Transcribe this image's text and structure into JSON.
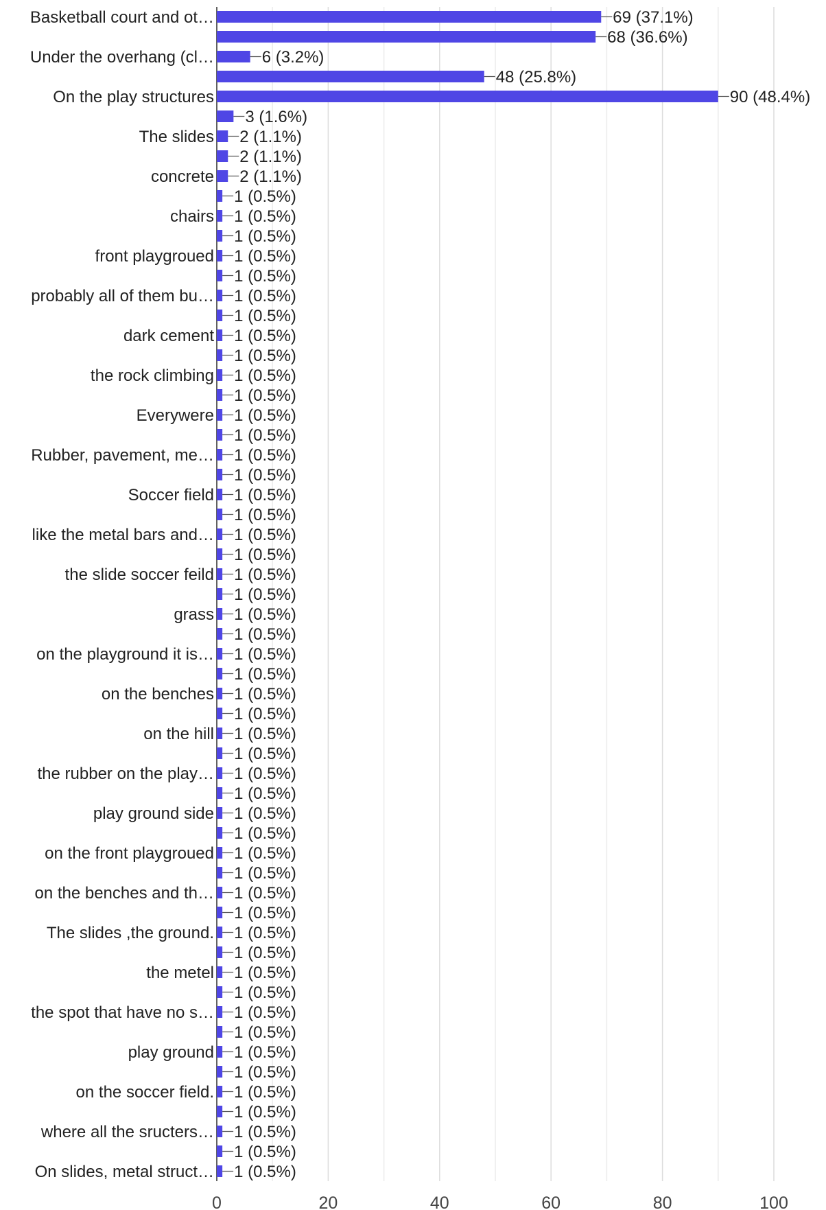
{
  "chart_data": {
    "type": "bar",
    "orientation": "horizontal",
    "bar_color": "#4f46e5",
    "grid": true,
    "legend": "none",
    "xlim": [
      0,
      100
    ],
    "x_ticks": [
      0,
      20,
      40,
      60,
      80,
      100
    ],
    "title": "",
    "xlabel": "",
    "ylabel": "",
    "bars": [
      {
        "label": "Basketball court and ot…",
        "value": 69,
        "display": "69 (37.1%)"
      },
      {
        "label": "",
        "value": 68,
        "display": "68 (36.6%)"
      },
      {
        "label": "Under the overhang (cl…",
        "value": 6,
        "display": "6 (3.2%)"
      },
      {
        "label": "",
        "value": 48,
        "display": "48 (25.8%)"
      },
      {
        "label": "On the play structures",
        "value": 90,
        "display": "90 (48.4%)"
      },
      {
        "label": "",
        "value": 3,
        "display": "3 (1.6%)"
      },
      {
        "label": "The slides",
        "value": 2,
        "display": "2 (1.1%)"
      },
      {
        "label": "",
        "value": 2,
        "display": "2 (1.1%)"
      },
      {
        "label": "concrete",
        "value": 2,
        "display": "2 (1.1%)"
      },
      {
        "label": "",
        "value": 1,
        "display": "1 (0.5%)"
      },
      {
        "label": "chairs",
        "value": 1,
        "display": "1 (0.5%)"
      },
      {
        "label": "",
        "value": 1,
        "display": "1 (0.5%)"
      },
      {
        "label": "front playgroued",
        "value": 1,
        "display": "1 (0.5%)"
      },
      {
        "label": "",
        "value": 1,
        "display": "1 (0.5%)"
      },
      {
        "label": "probably all of them bu…",
        "value": 1,
        "display": "1 (0.5%)"
      },
      {
        "label": "",
        "value": 1,
        "display": "1 (0.5%)"
      },
      {
        "label": "dark cement",
        "value": 1,
        "display": "1 (0.5%)"
      },
      {
        "label": "",
        "value": 1,
        "display": "1 (0.5%)"
      },
      {
        "label": "the rock climbing",
        "value": 1,
        "display": "1 (0.5%)"
      },
      {
        "label": "",
        "value": 1,
        "display": "1 (0.5%)"
      },
      {
        "label": "Everywere",
        "value": 1,
        "display": "1 (0.5%)"
      },
      {
        "label": "",
        "value": 1,
        "display": "1 (0.5%)"
      },
      {
        "label": "Rubber, pavement, me…",
        "value": 1,
        "display": "1 (0.5%)"
      },
      {
        "label": "",
        "value": 1,
        "display": "1 (0.5%)"
      },
      {
        "label": "Soccer field",
        "value": 1,
        "display": "1 (0.5%)"
      },
      {
        "label": "",
        "value": 1,
        "display": "1 (0.5%)"
      },
      {
        "label": "like the metal bars and…",
        "value": 1,
        "display": "1 (0.5%)"
      },
      {
        "label": "",
        "value": 1,
        "display": "1 (0.5%)"
      },
      {
        "label": "the slide soccer feild",
        "value": 1,
        "display": "1 (0.5%)"
      },
      {
        "label": "",
        "value": 1,
        "display": "1 (0.5%)"
      },
      {
        "label": "grass",
        "value": 1,
        "display": "1 (0.5%)"
      },
      {
        "label": "",
        "value": 1,
        "display": "1 (0.5%)"
      },
      {
        "label": "on the playground it is…",
        "value": 1,
        "display": "1 (0.5%)"
      },
      {
        "label": "",
        "value": 1,
        "display": "1 (0.5%)"
      },
      {
        "label": "on the benches",
        "value": 1,
        "display": "1 (0.5%)"
      },
      {
        "label": "",
        "value": 1,
        "display": "1 (0.5%)"
      },
      {
        "label": "on the hill",
        "value": 1,
        "display": "1 (0.5%)"
      },
      {
        "label": "",
        "value": 1,
        "display": "1 (0.5%)"
      },
      {
        "label": "the rubber on the play…",
        "value": 1,
        "display": "1 (0.5%)"
      },
      {
        "label": "",
        "value": 1,
        "display": "1 (0.5%)"
      },
      {
        "label": "play ground side",
        "value": 1,
        "display": "1 (0.5%)"
      },
      {
        "label": "",
        "value": 1,
        "display": "1 (0.5%)"
      },
      {
        "label": "on the front playgroued",
        "value": 1,
        "display": "1 (0.5%)"
      },
      {
        "label": "",
        "value": 1,
        "display": "1 (0.5%)"
      },
      {
        "label": "on the benches and th…",
        "value": 1,
        "display": "1 (0.5%)"
      },
      {
        "label": "",
        "value": 1,
        "display": "1 (0.5%)"
      },
      {
        "label": "The slides ,the ground.",
        "value": 1,
        "display": "1 (0.5%)"
      },
      {
        "label": "",
        "value": 1,
        "display": "1 (0.5%)"
      },
      {
        "label": "the metel",
        "value": 1,
        "display": "1 (0.5%)"
      },
      {
        "label": "",
        "value": 1,
        "display": "1 (0.5%)"
      },
      {
        "label": "the spot that have no s…",
        "value": 1,
        "display": "1 (0.5%)"
      },
      {
        "label": "",
        "value": 1,
        "display": "1 (0.5%)"
      },
      {
        "label": "play ground",
        "value": 1,
        "display": "1 (0.5%)"
      },
      {
        "label": "",
        "value": 1,
        "display": "1 (0.5%)"
      },
      {
        "label": "on the soccer field.",
        "value": 1,
        "display": "1 (0.5%)"
      },
      {
        "label": "",
        "value": 1,
        "display": "1 (0.5%)"
      },
      {
        "label": "where all the sructers…",
        "value": 1,
        "display": "1 (0.5%)"
      },
      {
        "label": "",
        "value": 1,
        "display": "1 (0.5%)"
      },
      {
        "label": "On slides, metal struct…",
        "value": 1,
        "display": "1 (0.5%)"
      }
    ]
  }
}
